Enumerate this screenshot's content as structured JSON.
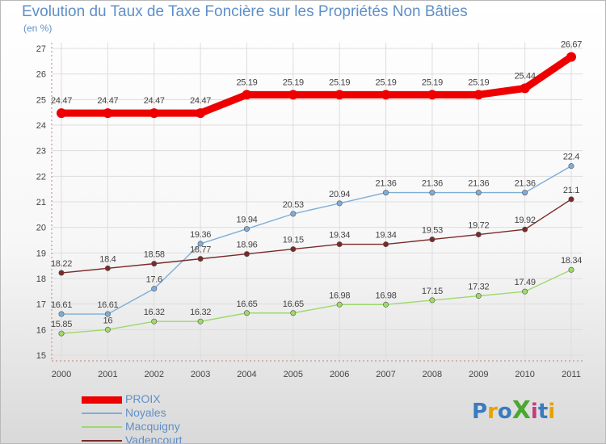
{
  "title": "Evolution du Taux de Taxe Foncière sur les Propriétés Non Bâties",
  "unit_label": "(en %)",
  "logo": {
    "text": "ProXiti",
    "letters": [
      "P",
      "r",
      "o",
      "X",
      "i",
      "t",
      "i"
    ],
    "colors": [
      "#3a7bbf",
      "#e8a200",
      "#3a7bbf",
      "#4aa832",
      "#c63b7e",
      "#3a7bbf",
      "#e8a200"
    ]
  },
  "chart_data": {
    "type": "line",
    "title": "Evolution du Taux de Taxe Foncière sur les Propriétés Non Bâties",
    "ylabel": "(en %)",
    "xlabel": "",
    "x": [
      "2000",
      "2001",
      "2002",
      "2003",
      "2004",
      "2005",
      "2006",
      "2007",
      "2008",
      "2009",
      "2010",
      "2011"
    ],
    "ylim": [
      15,
      27
    ],
    "yticks": [
      "15",
      "16",
      "17",
      "18",
      "19",
      "20",
      "21",
      "22",
      "23",
      "24",
      "25",
      "26",
      "27"
    ],
    "grid": true,
    "legend_position": "bottom-left",
    "series": [
      {
        "name": "PROIX",
        "color": "#ee0000",
        "values": [
          24.47,
          24.47,
          24.47,
          24.47,
          25.19,
          25.19,
          25.19,
          25.19,
          25.19,
          25.19,
          25.44,
          26.67
        ],
        "labels": [
          "24.47",
          "24.47",
          "24.47",
          "24.47",
          "25.19",
          "25.19",
          "25.19",
          "25.19",
          "25.19",
          "25.19",
          "25.44",
          "26.67"
        ]
      },
      {
        "name": "Noyales",
        "color": "#7eaed8",
        "values": [
          16.61,
          16.61,
          17.6,
          19.36,
          19.94,
          20.53,
          20.94,
          21.36,
          21.36,
          21.36,
          21.36,
          22.4
        ],
        "labels": [
          "16.61",
          "16.61",
          "17.6",
          "19.36",
          "19.94",
          "20.53",
          "20.94",
          "21.36",
          "21.36",
          "21.36",
          "21.36",
          "22.4"
        ]
      },
      {
        "name": "Macquigny",
        "color": "#9ed96a",
        "values": [
          15.85,
          16,
          16.32,
          16.32,
          16.65,
          16.65,
          16.98,
          16.98,
          17.15,
          17.32,
          17.49,
          18.34
        ],
        "labels": [
          "15.85",
          "16",
          "16.32",
          "16.32",
          "16.65",
          "16.65",
          "16.98",
          "16.98",
          "17.15",
          "17.32",
          "17.49",
          "18.34"
        ]
      },
      {
        "name": "Vadencourt",
        "color": "#7b2a2a",
        "values": [
          18.22,
          18.4,
          18.58,
          18.77,
          18.96,
          19.15,
          19.34,
          19.34,
          19.53,
          19.72,
          19.92,
          21.1
        ],
        "labels": [
          "18.22",
          "18.4",
          "18.58",
          "18.77",
          "18.96",
          "19.15",
          "19.34",
          "19.34",
          "19.53",
          "19.72",
          "19.92",
          "21.1"
        ]
      }
    ]
  }
}
